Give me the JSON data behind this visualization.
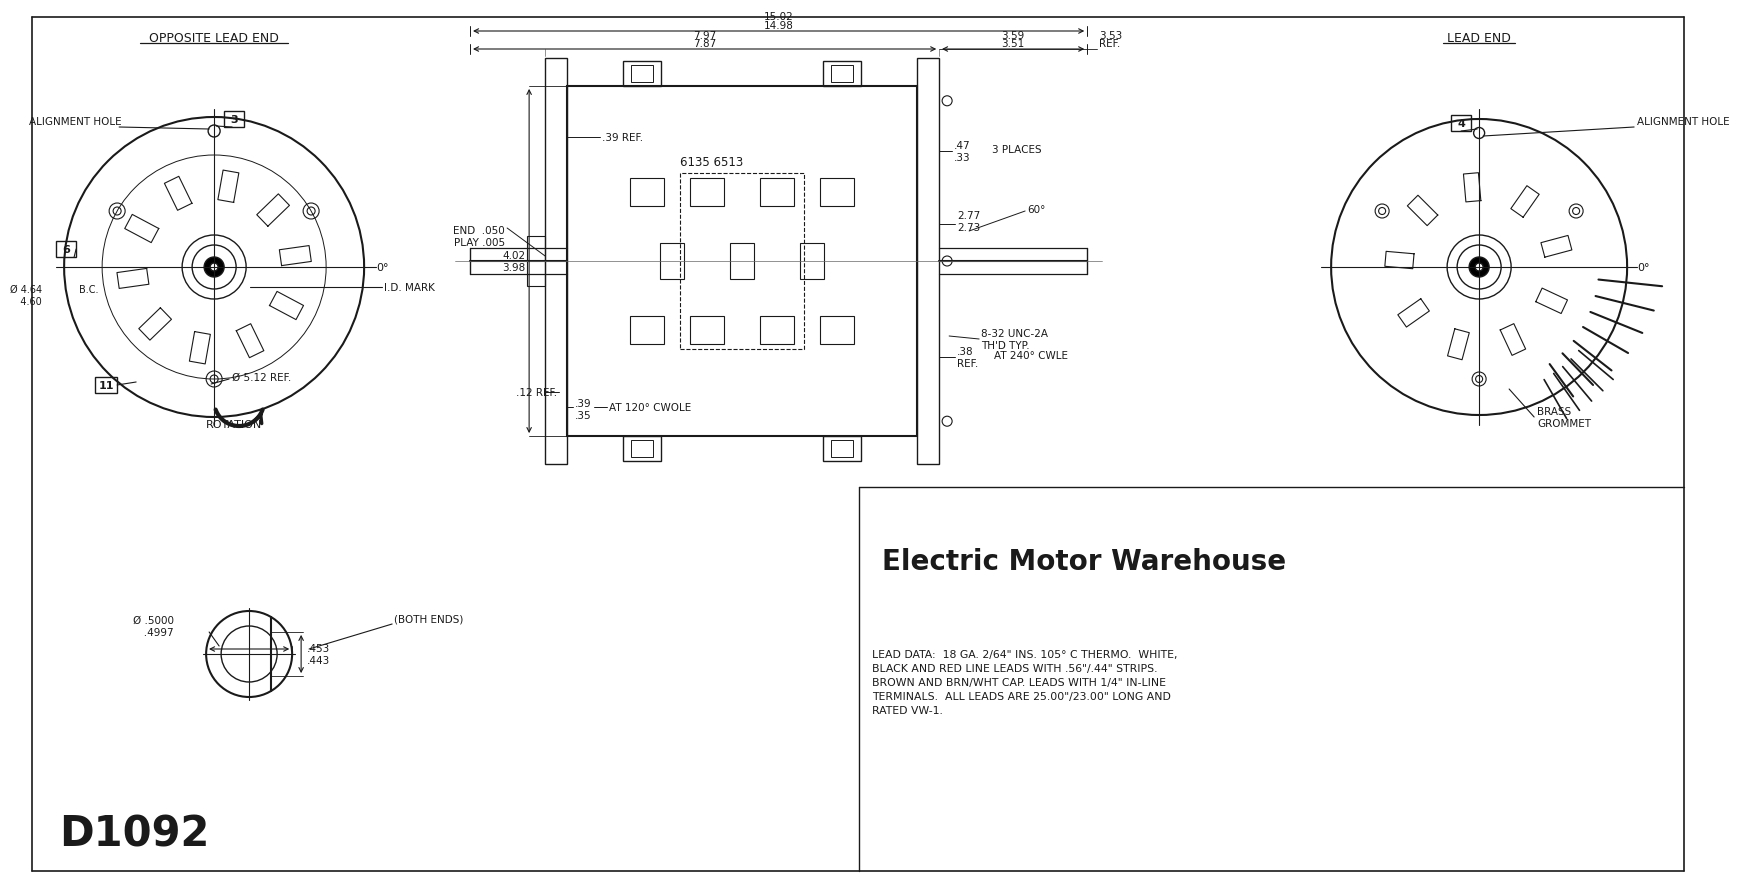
{
  "bg_color": "#ffffff",
  "line_color": "#1a1a1a",
  "title_brand": "Electric Motor Warehouse",
  "model": "D1092",
  "lead_data": "LEAD DATA:  18 GA. 2/64\" INS. 105° C THERMO.  WHITE,\nBLACK AND RED LINE LEADS WITH .56\"/.44\" STRIPS.\nBROWN AND BRN/WHT CAP. LEADS WITH 1/4\" IN-LINE\nTERMINALS.  ALL LEADS ARE 25.00\"/23.00\" LONG AND\nRATED VW-1.",
  "opposite_lead_end_label": "OPPOSITE LEAD END",
  "lead_end_label": "LEAD END",
  "alignment_hole_label": "ALIGNMENT HOLE",
  "id_mark_label": "I.D. MARK",
  "rotation_label": "ROTATION",
  "brass_grommet_label": "BRASS\nGROMMET",
  "dim_15_02": "15.02",
  "dim_14_98": "14.98",
  "dim_7_97": "7.97",
  "dim_7_87": "7.87",
  "dim_3_59": "3.59",
  "dim_3_51": "3.51",
  "dim_3_53": "3.53",
  "dim_3_53_ref": "REF.",
  "dim_39_ref": ".39 REF.",
  "dim_47": ".47",
  "dim_33": ".33",
  "dim_3places": "3 PLACES",
  "dim_end_play": "END  .050\nPLAY .005",
  "dim_6135": "6135 6513",
  "dim_2_77": "2.77",
  "dim_2_73": "2.73",
  "dim_4_02": "4.02",
  "dim_3_98": "3.98",
  "dim_60deg": "60°",
  "dim_8_32": "8-32 UNC-2A\nTH'D TYP.",
  "dim_38_ref": ".38\nREF.",
  "dim_at240": "AT 240° CWLE",
  "dim_12_ref": ".12 REF.",
  "dim_39_35": ".39\n.35",
  "dim_at120": "AT 120° CWOLE",
  "dim_0deg_left": "0°",
  "dim_0deg_right": "0°",
  "dim_464_460": "Ø 4.64\n   4.60",
  "dim_bc": "B.C.",
  "dim_512_ref": "Ø 5.12 REF.",
  "dim_5000_4997": "Ø .5000\n   .4997",
  "dim_453_443": ".453\n.443",
  "dim_both_ends": "(BOTH ENDS)",
  "num_3": "3",
  "num_4": "4",
  "num_6": "6",
  "num_11": "11"
}
